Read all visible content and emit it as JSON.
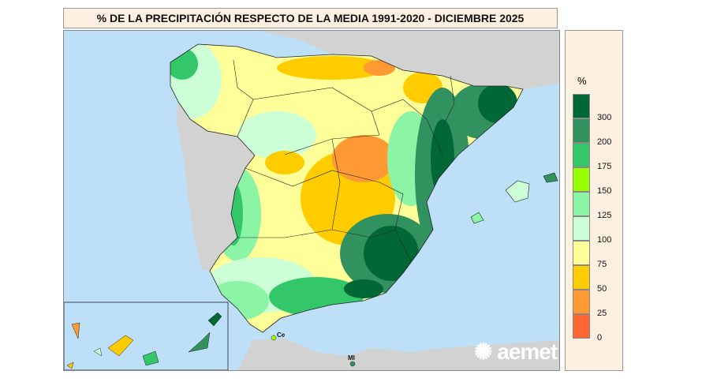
{
  "title": "% DE LA PRECIPITACIÓN RESPECTO DE LA MEDIA 1991-2020 - DICIEMBRE 2025",
  "legend": {
    "unit": "%",
    "colors": [
      "#006837",
      "#31925f",
      "#34c76a",
      "#99ff00",
      "#8cf5a5",
      "#ccffd6",
      "#ffff99",
      "#ffcc00",
      "#ff9933",
      "#ff6633"
    ],
    "labels": [
      "300",
      "200",
      "175",
      "150",
      "125",
      "100",
      "75",
      "50",
      "25",
      "0"
    ]
  },
  "map": {
    "sea_color": "#bde0f8",
    "foreign_land_color": "#d2d2d2",
    "labels": {
      "ceuta": "Ce",
      "melilla": "MI"
    }
  },
  "logo": "aemet"
}
